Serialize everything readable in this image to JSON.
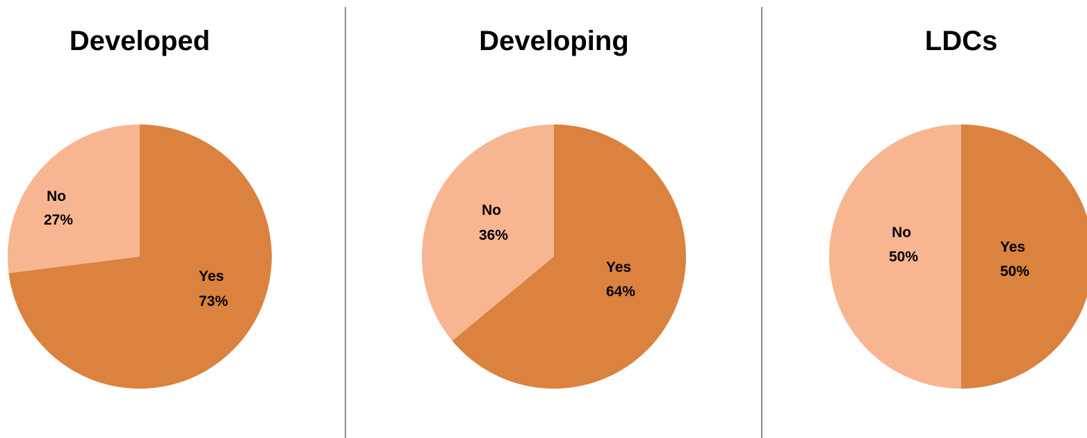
{
  "colors": {
    "yes": "#db823e",
    "no": "#f8b592",
    "divider": "#8c8c8c",
    "text": "#000000"
  },
  "chart_data": [
    {
      "type": "pie",
      "title": "Developed",
      "slices": [
        {
          "label": "Yes",
          "value": 73,
          "value_label": "73%"
        },
        {
          "label": "No",
          "value": 27,
          "value_label": "27%"
        }
      ]
    },
    {
      "type": "pie",
      "title": "Developing",
      "slices": [
        {
          "label": "Yes",
          "value": 64,
          "value_label": "64%"
        },
        {
          "label": "No",
          "value": 36,
          "value_label": "36%"
        }
      ]
    },
    {
      "type": "pie",
      "title": "LDCs",
      "slices": [
        {
          "label": "Yes",
          "value": 50,
          "value_label": "50%"
        },
        {
          "label": "No",
          "value": 50,
          "value_label": "50%"
        }
      ]
    }
  ]
}
